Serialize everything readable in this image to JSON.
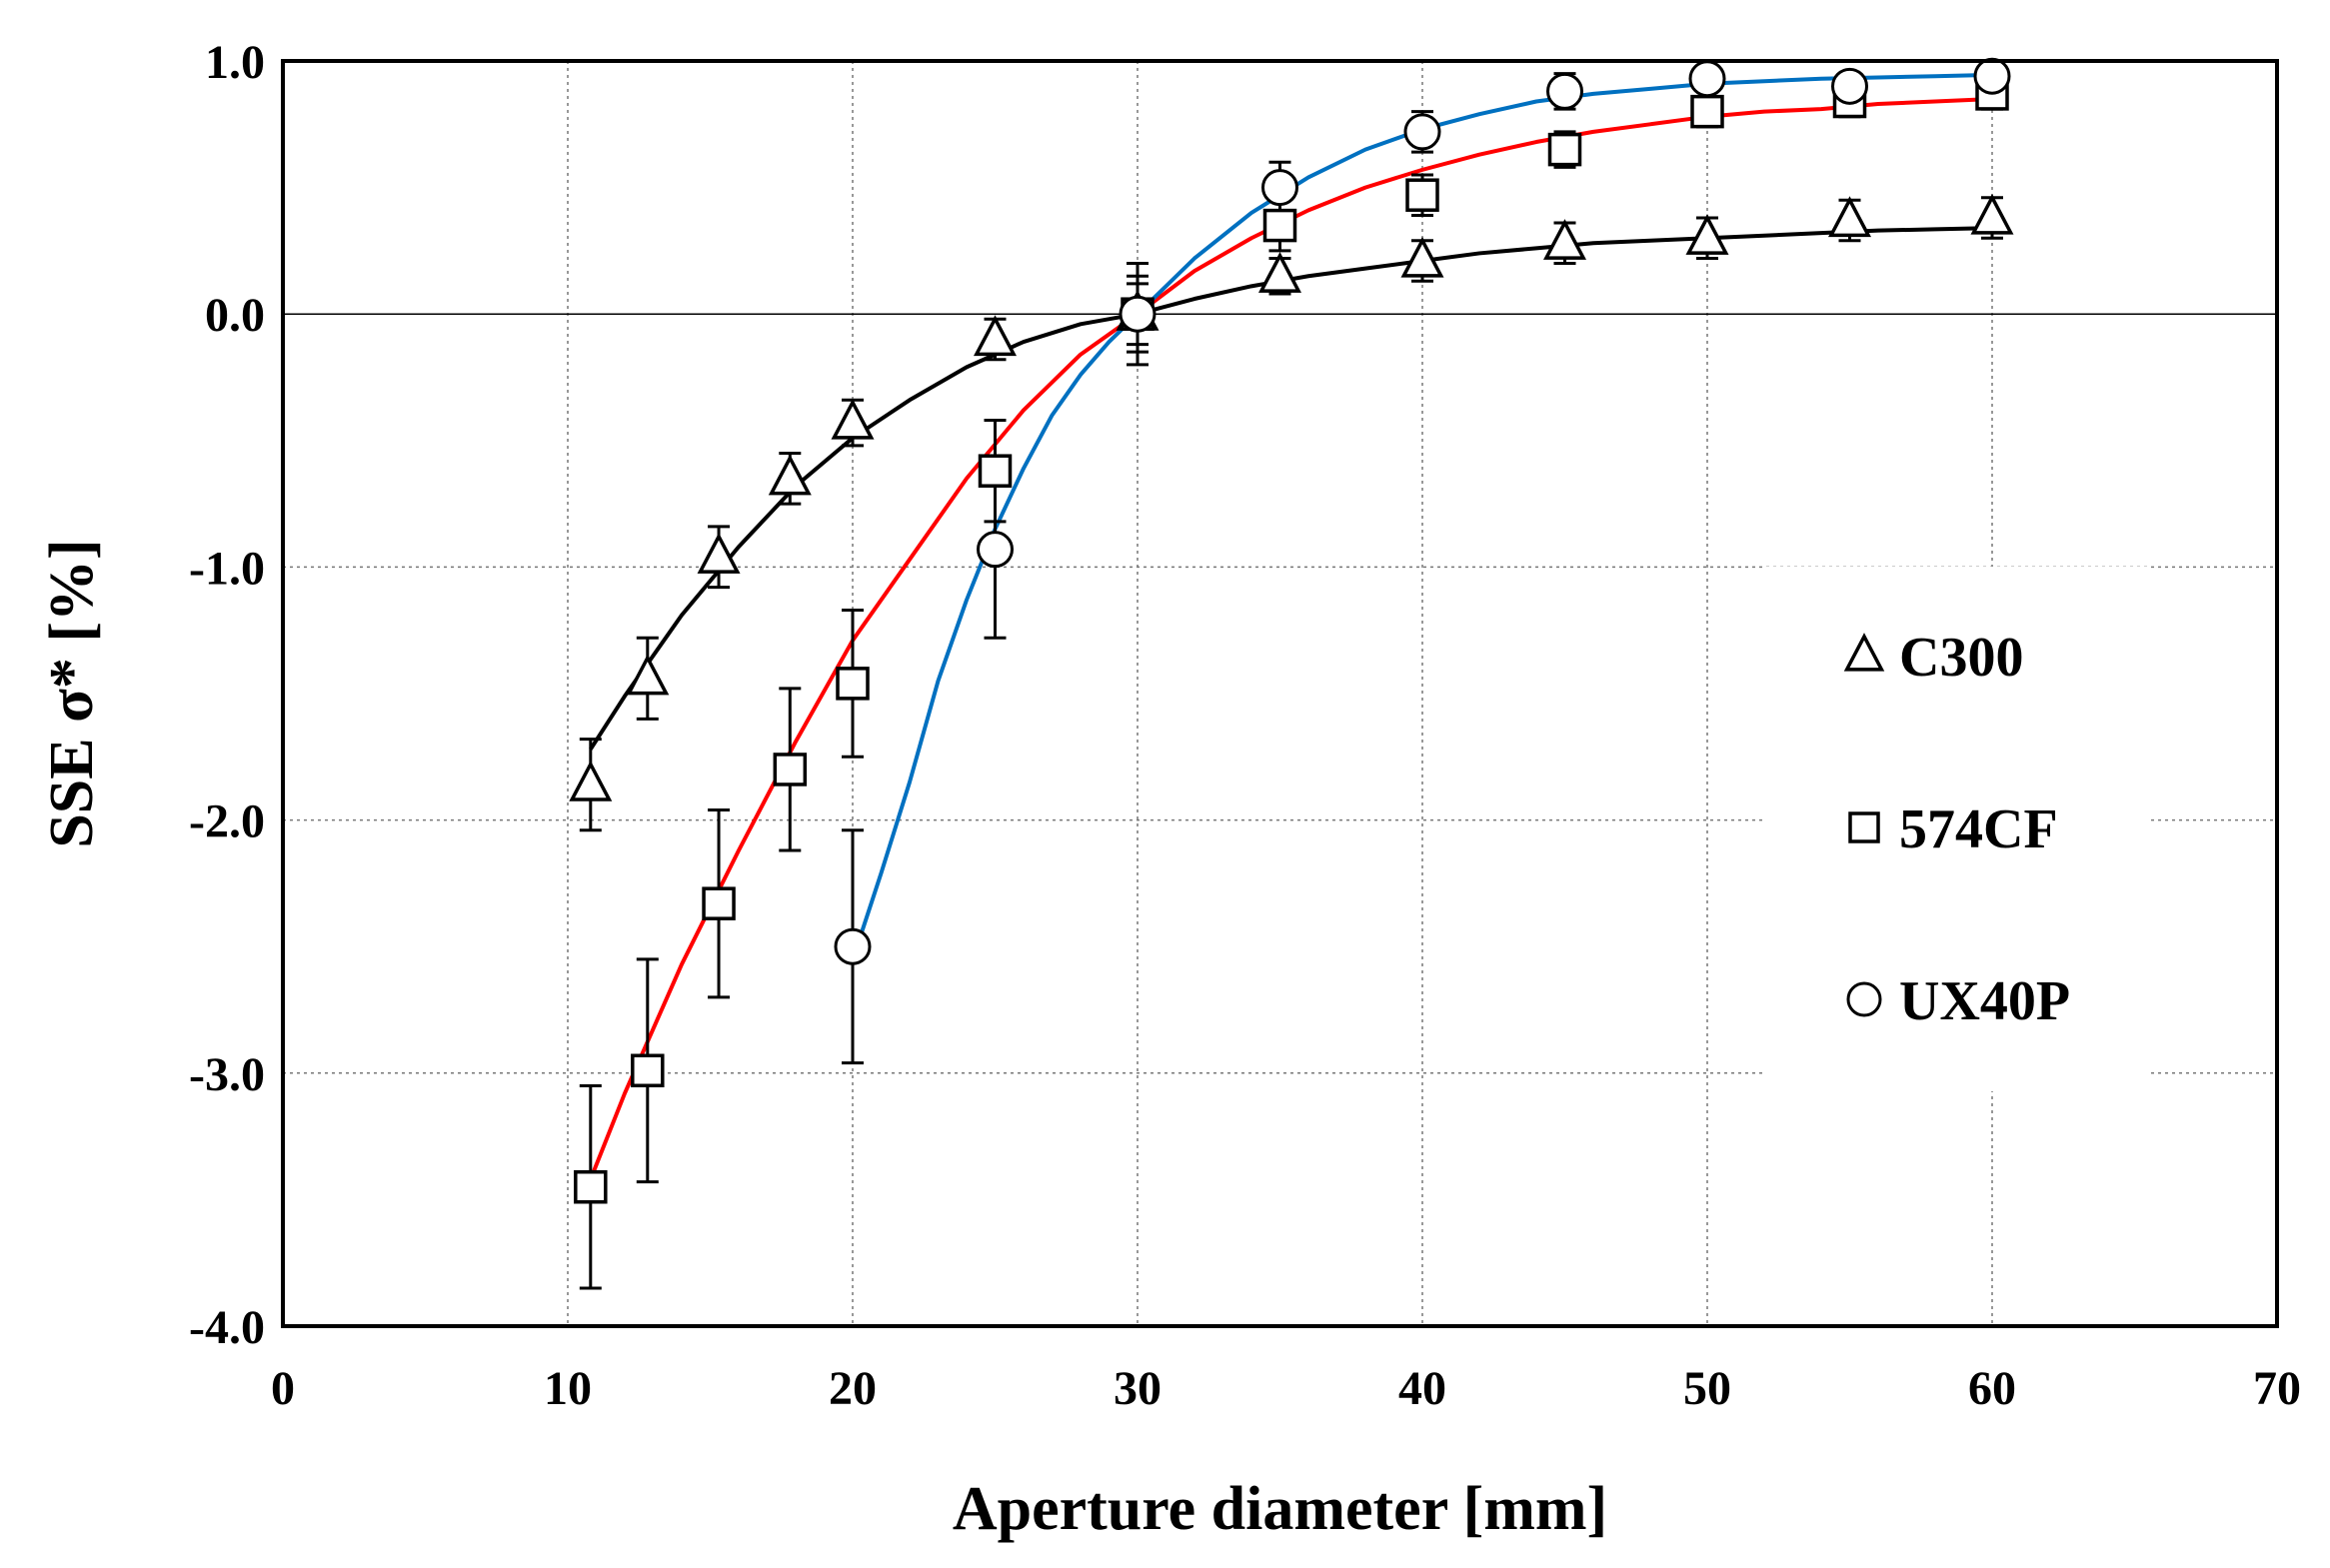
{
  "chart_data": {
    "type": "scatter",
    "title": "",
    "xlabel": "Aperture diameter [mm]",
    "ylabel": "SSE σ* [%]",
    "xlim": [
      0,
      70
    ],
    "ylim": [
      -4.0,
      1.0
    ],
    "xticks": [
      0,
      10,
      20,
      30,
      40,
      50,
      60,
      70
    ],
    "xtick_labels": [
      "0",
      "10",
      "20",
      "30",
      "40",
      "50",
      "60",
      "70"
    ],
    "yticks": [
      1.0,
      0.0,
      -1.0,
      -2.0,
      -3.0,
      -4.0
    ],
    "ytick_labels": [
      "1.0",
      "0.0",
      "-1.0",
      "-2.0",
      "-3.0",
      "-4.0"
    ],
    "grid": true,
    "legend_position": "right",
    "series": [
      {
        "name": "C300",
        "marker": "triangle",
        "line_color": "#000000",
        "x": [
          10.8,
          12.8,
          15.3,
          17.8,
          20,
          25,
          30,
          35,
          40,
          45,
          50,
          55,
          60
        ],
        "y": [
          -1.86,
          -1.44,
          -0.96,
          -0.65,
          -0.43,
          -0.1,
          0.0,
          0.15,
          0.21,
          0.28,
          0.3,
          0.37,
          0.38
        ],
        "err": [
          0.18,
          0.16,
          0.12,
          0.1,
          0.09,
          0.08,
          0.2,
          0.07,
          0.08,
          0.08,
          0.08,
          0.08,
          0.08
        ],
        "fit_x": [
          10.8,
          12,
          14,
          16,
          18,
          20,
          22,
          24,
          26,
          28,
          30,
          32,
          34,
          36,
          38,
          40,
          42,
          44,
          46,
          48,
          50,
          52,
          54,
          56,
          58,
          60
        ],
        "fit_y": [
          -1.72,
          -1.51,
          -1.19,
          -0.92,
          -0.68,
          -0.49,
          -0.34,
          -0.21,
          -0.11,
          -0.04,
          0.0,
          0.06,
          0.11,
          0.15,
          0.18,
          0.21,
          0.24,
          0.26,
          0.28,
          0.29,
          0.3,
          0.31,
          0.32,
          0.33,
          0.335,
          0.34
        ]
      },
      {
        "name": "574CF",
        "marker": "square",
        "line_color": "#ff0000",
        "x": [
          10.8,
          12.8,
          15.3,
          17.8,
          20,
          25,
          30,
          35,
          40,
          45,
          50,
          55,
          60
        ],
        "y": [
          -3.45,
          -2.99,
          -2.33,
          -1.8,
          -1.46,
          -0.62,
          0.0,
          0.35,
          0.47,
          0.65,
          0.8,
          0.84,
          0.87
        ],
        "err": [
          0.4,
          0.44,
          0.37,
          0.32,
          0.29,
          0.2,
          0.15,
          0.1,
          0.08,
          0.07,
          0.06,
          0.06,
          0.06
        ],
        "fit_x": [
          10.8,
          12,
          14,
          16,
          18,
          20,
          22,
          24,
          26,
          28,
          30,
          32,
          34,
          36,
          38,
          40,
          42,
          44,
          46,
          48,
          50,
          52,
          54,
          56,
          58,
          60
        ],
        "fit_y": [
          -3.42,
          -3.08,
          -2.57,
          -2.12,
          -1.69,
          -1.29,
          -0.97,
          -0.65,
          -0.38,
          -0.16,
          0.0,
          0.17,
          0.3,
          0.41,
          0.5,
          0.57,
          0.63,
          0.68,
          0.72,
          0.75,
          0.78,
          0.8,
          0.81,
          0.83,
          0.84,
          0.85
        ]
      },
      {
        "name": "UX40P",
        "marker": "circle",
        "line_color": "#0070c0",
        "x": [
          20,
          25,
          30,
          35,
          40,
          45,
          50,
          55,
          60
        ],
        "y": [
          -2.5,
          -0.93,
          0.0,
          0.5,
          0.72,
          0.88,
          0.93,
          0.9,
          0.94
        ],
        "err": [
          0.46,
          0.35,
          0.12,
          0.1,
          0.08,
          0.07,
          0.05,
          0.05,
          0.05
        ],
        "fit_x": [
          20.3,
          21,
          22,
          23,
          24,
          25,
          26,
          27,
          28,
          29,
          30,
          32,
          34,
          36,
          38,
          40,
          42,
          44,
          46,
          48,
          50,
          52,
          54,
          56,
          58,
          60
        ],
        "fit_y": [
          -2.45,
          -2.21,
          -1.85,
          -1.45,
          -1.13,
          -0.85,
          -0.61,
          -0.4,
          -0.24,
          -0.11,
          0.0,
          0.22,
          0.4,
          0.54,
          0.65,
          0.73,
          0.79,
          0.84,
          0.87,
          0.89,
          0.91,
          0.92,
          0.93,
          0.935,
          0.94,
          0.945
        ]
      }
    ]
  }
}
